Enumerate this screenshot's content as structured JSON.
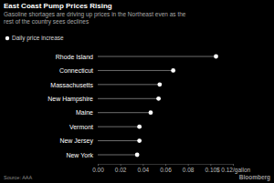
{
  "chart_data": {
    "type": "lollipop",
    "title": "East Coast Pump Prices Rising",
    "subtitle": "Gasoline shortages are driving up prices in the Northeast even as the rest of the country sees declines",
    "annotations": [
      "Source: AAA",
      "Bloomberg"
    ],
    "orientation": "horizontal",
    "grid": false,
    "legend": "top-left",
    "categories": [
      "Rhode Island",
      "Connecticut",
      "Massachusetts",
      "New Hampshire",
      "Maine",
      "Vermont",
      "New Jersey",
      "New York"
    ],
    "series": [
      {
        "name": "Daily price increase",
        "color": "#ffffff",
        "values": [
          0.105,
          0.067,
          0.055,
          0.054,
          0.047,
          0.037,
          0.037,
          0.035
        ]
      }
    ],
    "xlim": [
      0,
      0.12
    ],
    "xticks": [
      {
        "value": 0,
        "label": "0.00"
      },
      0.02,
      0.04,
      0.06,
      0.08,
      {
        "value": 0.1,
        "label": "0.10"
      },
      {
        "value": 0.12,
        "label": "$ 0.12/gallon"
      }
    ]
  }
}
